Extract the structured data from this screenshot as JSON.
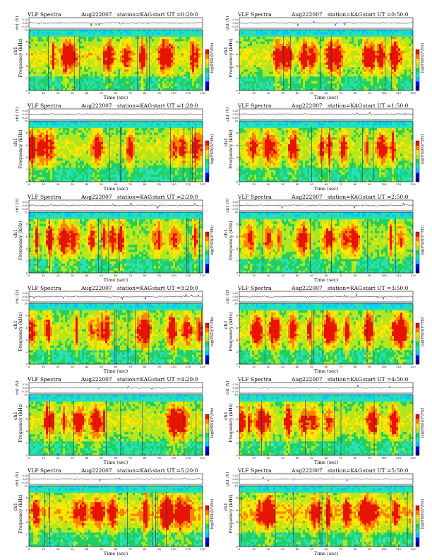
{
  "page": {
    "background": "#ffffff"
  },
  "header": {
    "title": "VLF Spectra",
    "date": "Aug222007",
    "station": "station=KAG",
    "start_prefix": "start UT ="
  },
  "colors": {
    "scale": [
      "#000080",
      "#0000ff",
      "#00c8ff",
      "#28e0b4",
      "#20d060",
      "#b4e61e",
      "#ffe600",
      "#ff8200",
      "#e61400"
    ],
    "waveform": "#000000"
  },
  "chart_data": [
    {
      "type": "heatmap",
      "start_ut": "0:20:0",
      "x_label": "Time (sec)",
      "y_label_1": "ch1",
      "y_label_2": "Frequency (kHz)",
      "amp_label": "ch1 (V)",
      "colorbar_label": "log(PSD)(V²/Hz)",
      "x_ticks": [
        "0",
        "10",
        "20",
        "30",
        "40",
        "50",
        "60",
        "70",
        "80",
        "90",
        "100",
        "110",
        "120"
      ],
      "y_ticks": [
        "0",
        "2",
        "4",
        "6",
        "8",
        "10"
      ],
      "amp_ticks": [
        "0.20",
        "0.00",
        "-0.20"
      ],
      "xlim": [
        0,
        120
      ],
      "ylim": [
        0,
        10
      ],
      "activity": 0.55
    },
    {
      "type": "heatmap",
      "start_ut": "0:50:0",
      "x_label": "Time (sec)",
      "y_label_1": "ch1",
      "y_label_2": "Frequency (kHz)",
      "amp_label": "ch1 (V)",
      "colorbar_label": "log(PSD)(V²/Hz)",
      "x_ticks": [
        "0",
        "10",
        "20",
        "30",
        "40",
        "50",
        "60",
        "70",
        "80",
        "90",
        "100",
        "110",
        "120"
      ],
      "y_ticks": [
        "0",
        "2",
        "4",
        "6",
        "8",
        "10"
      ],
      "amp_ticks": [
        "0.20",
        "0.00",
        "-0.20"
      ],
      "xlim": [
        0,
        120
      ],
      "ylim": [
        0,
        10
      ],
      "activity": 0.5
    },
    {
      "type": "heatmap",
      "start_ut": "1:20:0",
      "x_label": "Time (sec)",
      "y_label_1": "ch1",
      "y_label_2": "Frequency (kHz)",
      "amp_label": "ch1 (V)",
      "colorbar_label": "log(PSD)(V²/Hz)",
      "x_ticks": [
        "0",
        "10",
        "20",
        "30",
        "40",
        "50",
        "60",
        "70",
        "80",
        "90",
        "100",
        "110",
        "120"
      ],
      "y_ticks": [
        "0",
        "2",
        "4",
        "6",
        "8",
        "10"
      ],
      "amp_ticks": [
        "0.20",
        "0.00",
        "-0.20"
      ],
      "xlim": [
        0,
        120
      ],
      "ylim": [
        0,
        10
      ],
      "activity": 0.45
    },
    {
      "type": "heatmap",
      "start_ut": "1:50:0",
      "x_label": "Time (sec)",
      "y_label_1": "ch1",
      "y_label_2": "Frequency (kHz)",
      "amp_label": "ch1 (V)",
      "colorbar_label": "log(PSD)(V²/Hz)",
      "x_ticks": [
        "0",
        "10",
        "20",
        "30",
        "40",
        "50",
        "60",
        "70",
        "80",
        "90",
        "100",
        "110",
        "120"
      ],
      "y_ticks": [
        "0",
        "2",
        "4",
        "6",
        "8",
        "10"
      ],
      "amp_ticks": [
        "0.20",
        "0.00",
        "-0.20"
      ],
      "xlim": [
        0,
        120
      ],
      "ylim": [
        0,
        10
      ],
      "activity": 0.4
    },
    {
      "type": "heatmap",
      "start_ut": "2:20:0",
      "x_label": "Time (sec)",
      "y_label_1": "ch1",
      "y_label_2": "Frequency (kHz)",
      "amp_label": "ch1 (V)",
      "colorbar_label": "log(PSD)(V²/Hz)",
      "x_ticks": [
        "0",
        "10",
        "20",
        "30",
        "40",
        "50",
        "60",
        "70",
        "80",
        "90",
        "100",
        "110",
        "120"
      ],
      "y_ticks": [
        "0",
        "2",
        "4",
        "6",
        "8",
        "10"
      ],
      "amp_ticks": [
        "0.20",
        "0.00",
        "-0.20"
      ],
      "xlim": [
        0,
        120
      ],
      "ylim": [
        0,
        10
      ],
      "activity": 0.3
    },
    {
      "type": "heatmap",
      "start_ut": "2:50:0",
      "x_label": "Time (sec)",
      "y_label_1": "ch1",
      "y_label_2": "Frequency (kHz)",
      "amp_label": "ch1 (V)",
      "colorbar_label": "log(PSD)(V²/Hz)",
      "x_ticks": [
        "0",
        "10",
        "20",
        "30",
        "40",
        "50",
        "60",
        "70",
        "80",
        "90",
        "100",
        "110",
        "120"
      ],
      "y_ticks": [
        "0",
        "2",
        "4",
        "6",
        "8",
        "10"
      ],
      "amp_ticks": [
        "0.20",
        "0.00",
        "-0.20"
      ],
      "xlim": [
        0,
        120
      ],
      "ylim": [
        0,
        10
      ],
      "activity": 0.3
    },
    {
      "type": "heatmap",
      "start_ut": "3:20:0",
      "x_label": "Time (sec)",
      "y_label_1": "ch1",
      "y_label_2": "Frequency (kHz)",
      "amp_label": "ch1 (V)",
      "colorbar_label": "log(PSD)(V²/Hz)",
      "x_ticks": [
        "0",
        "10",
        "20",
        "30",
        "40",
        "50",
        "60",
        "70",
        "80",
        "90",
        "100",
        "110",
        "120"
      ],
      "y_ticks": [
        "0",
        "2",
        "4",
        "6",
        "8",
        "10"
      ],
      "amp_ticks": [
        "0.20",
        "0.00",
        "-0.20"
      ],
      "xlim": [
        0,
        120
      ],
      "ylim": [
        0,
        10
      ],
      "activity": 0.35
    },
    {
      "type": "heatmap",
      "start_ut": "3:50:0",
      "x_label": "Time (sec)",
      "y_label_1": "ch1",
      "y_label_2": "Frequency (kHz)",
      "amp_label": "ch1 (V)",
      "colorbar_label": "log(PSD)(V²/Hz)",
      "x_ticks": [
        "0",
        "10",
        "20",
        "30",
        "40",
        "50",
        "60",
        "70",
        "80",
        "90",
        "100",
        "110",
        "120"
      ],
      "y_ticks": [
        "0",
        "2",
        "4",
        "6",
        "8",
        "10"
      ],
      "amp_ticks": [
        "0.20",
        "0.00",
        "-0.20"
      ],
      "xlim": [
        0,
        120
      ],
      "ylim": [
        0,
        10
      ],
      "activity": 0.5
    },
    {
      "type": "heatmap",
      "start_ut": "4:20:0",
      "x_label": "Time (sec)",
      "y_label_1": "ch1",
      "y_label_2": "Frequency (kHz)",
      "amp_label": "ch1 (V)",
      "colorbar_label": "log(PSD)(V²/Hz)",
      "x_ticks": [
        "0",
        "10",
        "20",
        "30",
        "40",
        "50",
        "60",
        "70",
        "80",
        "90",
        "100",
        "110",
        "120"
      ],
      "y_ticks": [
        "0",
        "2",
        "4",
        "6",
        "8",
        "10"
      ],
      "amp_ticks": [
        "0.20",
        "0.00",
        "-0.20"
      ],
      "xlim": [
        0,
        120
      ],
      "ylim": [
        0,
        10
      ],
      "activity": 0.45
    },
    {
      "type": "heatmap",
      "start_ut": "4:50:0",
      "x_label": "Time (sec)",
      "y_label_1": "ch1",
      "y_label_2": "Frequency (kHz)",
      "amp_label": "ch1 (V)",
      "colorbar_label": "log(PSD)(V²/Hz)",
      "x_ticks": [
        "0",
        "10",
        "20",
        "30",
        "40",
        "50",
        "60",
        "70",
        "80",
        "90",
        "100",
        "110",
        "120"
      ],
      "y_ticks": [
        "0",
        "2",
        "4",
        "6",
        "8",
        "10"
      ],
      "amp_ticks": [
        "0.20",
        "0.00",
        "-0.20"
      ],
      "xlim": [
        0,
        120
      ],
      "ylim": [
        0,
        10
      ],
      "activity": 0.45
    },
    {
      "type": "heatmap",
      "start_ut": "5:20:0",
      "x_label": "Time (sec)",
      "y_label_1": "ch1",
      "y_label_2": "Frequency (kHz)",
      "amp_label": "ch1 (V)",
      "colorbar_label": "log(PSD)(V²/Hz)",
      "x_ticks": [
        "0",
        "10",
        "20",
        "30",
        "40",
        "50",
        "60",
        "70",
        "80",
        "90",
        "100",
        "110",
        "120"
      ],
      "y_ticks": [
        "0",
        "2",
        "4",
        "6",
        "8",
        "10"
      ],
      "amp_ticks": [
        "0.20",
        "0.00",
        "-0.20"
      ],
      "xlim": [
        0,
        120
      ],
      "ylim": [
        0,
        10
      ],
      "activity": 0.7
    },
    {
      "type": "heatmap",
      "start_ut": "5:50:0",
      "x_label": "Time (sec)",
      "y_label_1": "ch1",
      "y_label_2": "Frequency (kHz)",
      "amp_label": "ch1 (V)",
      "colorbar_label": "log(PSD)(V²/Hz)",
      "x_ticks": [
        "0",
        "10",
        "20",
        "30",
        "40",
        "50",
        "60",
        "70",
        "80",
        "90",
        "100",
        "110",
        "120"
      ],
      "y_ticks": [
        "0",
        "2",
        "4",
        "6",
        "8",
        "10"
      ],
      "amp_ticks": [
        "0.20",
        "0.00",
        "-0.20"
      ],
      "xlim": [
        0,
        120
      ],
      "ylim": [
        0,
        10
      ],
      "activity": 0.75
    }
  ]
}
